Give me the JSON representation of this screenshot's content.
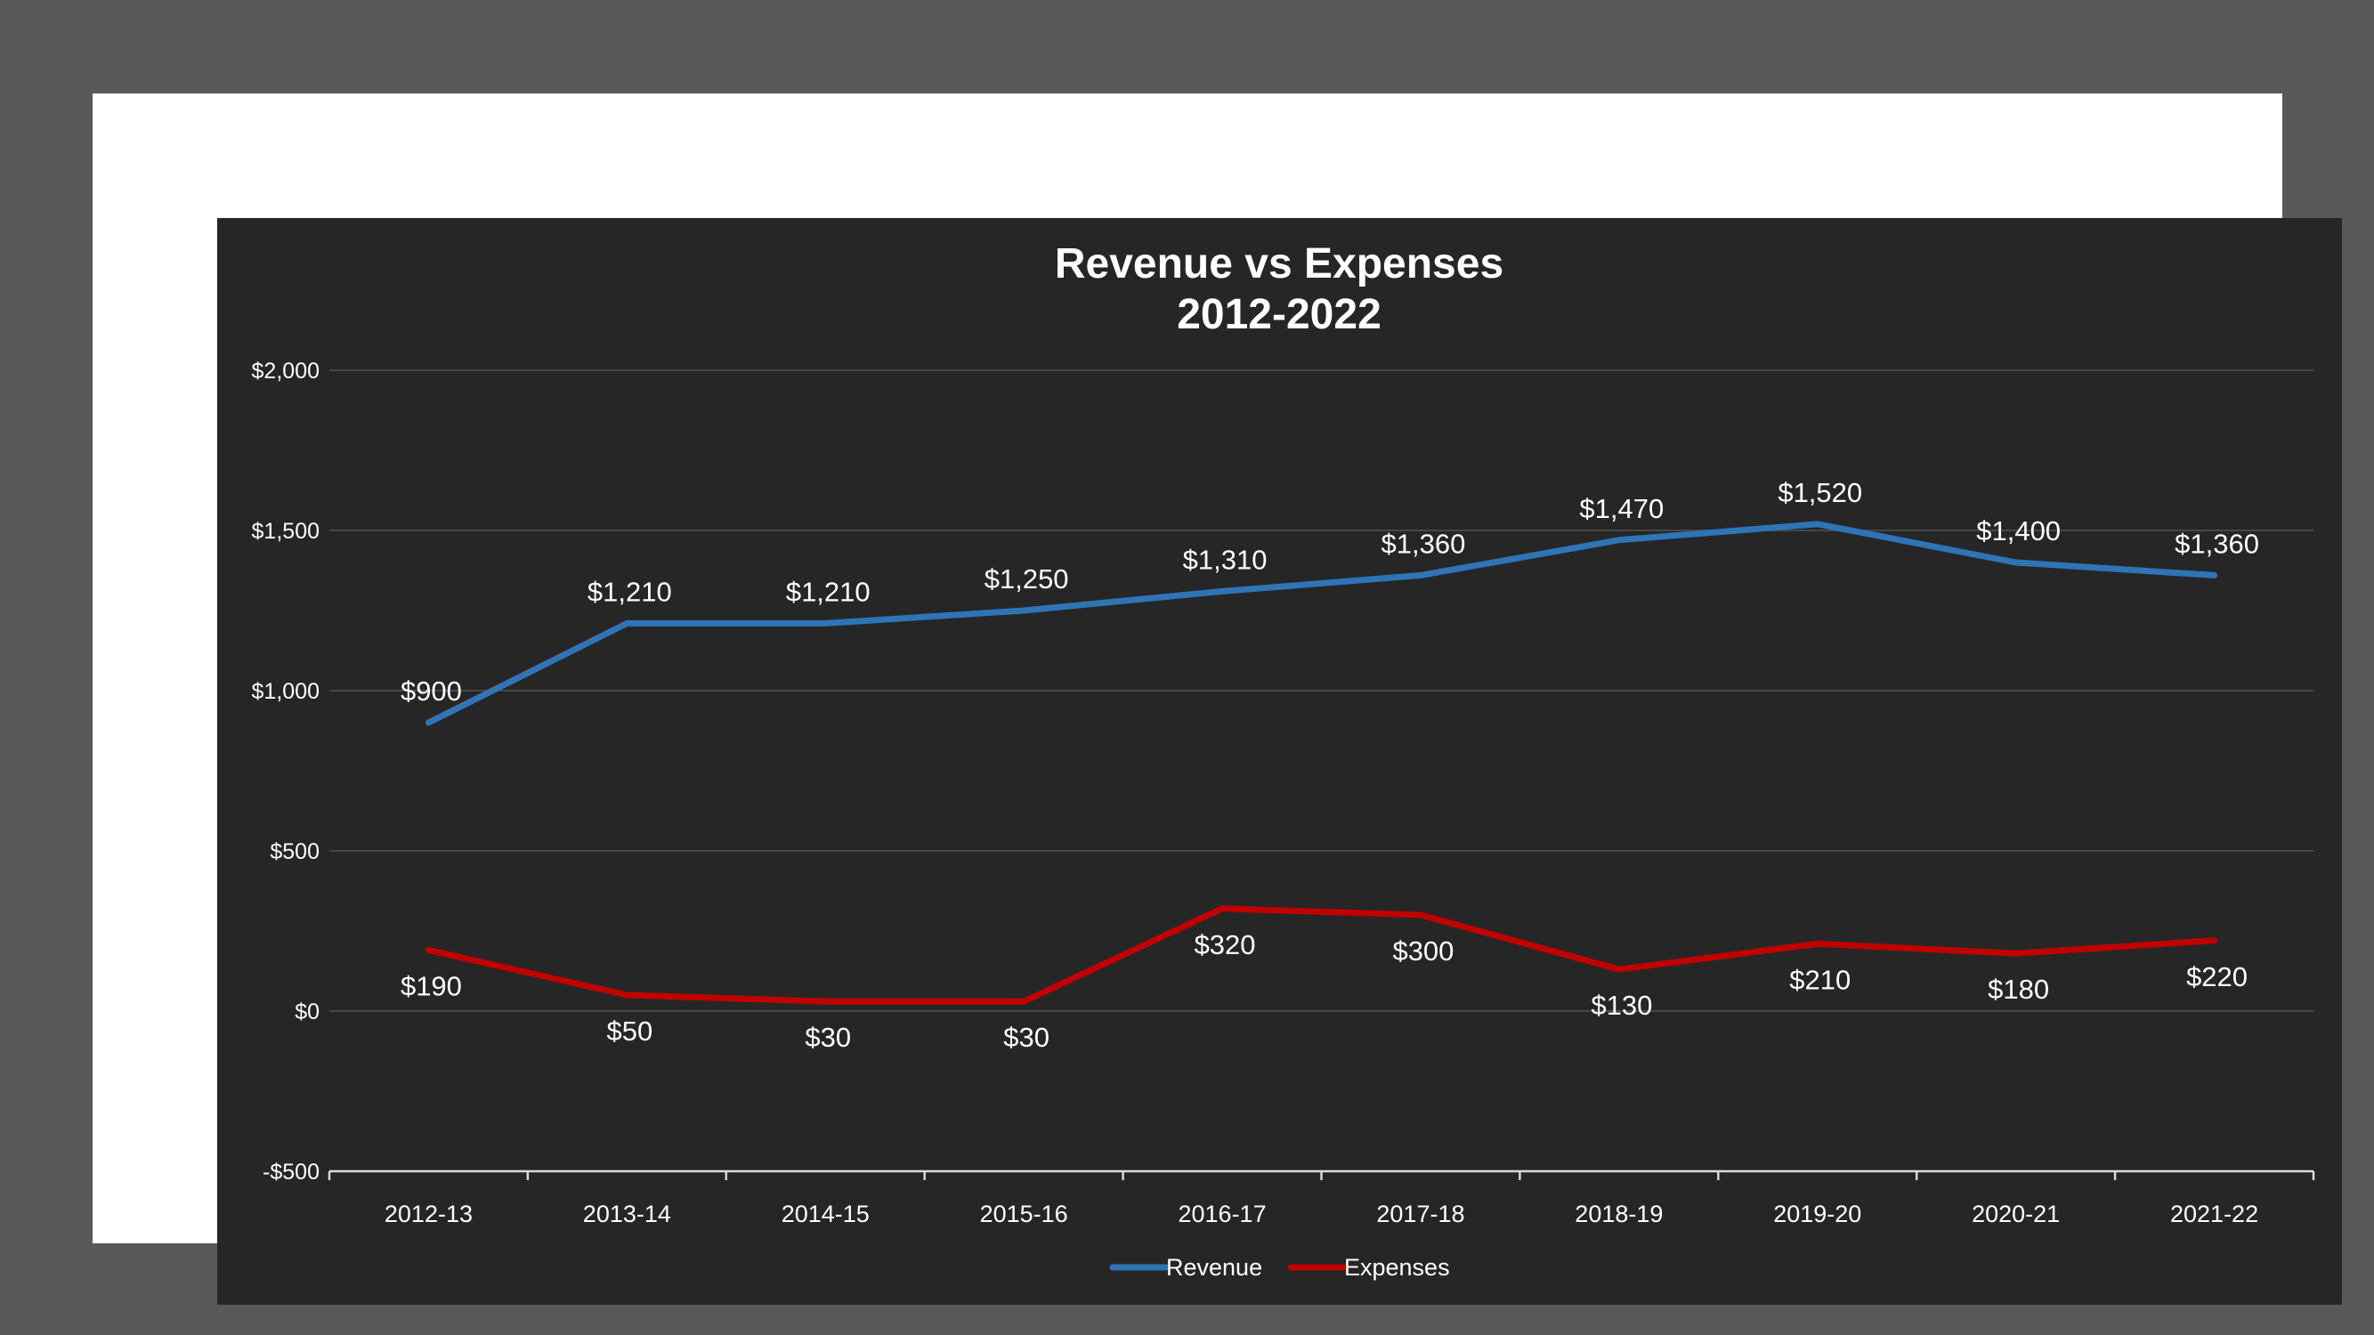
{
  "chart_data": {
    "type": "line",
    "title": "Revenue vs Expenses",
    "subtitle": "2012-2022",
    "categories": [
      "2012-13",
      "2013-14",
      "2014-15",
      "2015-16",
      "2016-17",
      "2017-18",
      "2018-19",
      "2019-20",
      "2020-21",
      "2021-22"
    ],
    "series": [
      {
        "name": "Revenue",
        "color": "#2E75B6",
        "values": [
          900,
          1210,
          1210,
          1250,
          1310,
          1360,
          1470,
          1520,
          1400,
          1360
        ],
        "labels": [
          "$900",
          "$1,210",
          "$1,210",
          "$1,250",
          "$1,310",
          "$1,360",
          "$1,470",
          "$1,520",
          "$1,400",
          "$1,360"
        ],
        "label_position": "above"
      },
      {
        "name": "Expenses",
        "color": "#C00000",
        "values": [
          190,
          50,
          30,
          30,
          320,
          300,
          130,
          210,
          180,
          220
        ],
        "labels": [
          "$190",
          "$50",
          "$30",
          "$30",
          "$320",
          "$300",
          "$130",
          "$210",
          "$180",
          "$220"
        ],
        "label_position": "below"
      }
    ],
    "ylim": [
      -500,
      2000
    ],
    "yticks": [
      {
        "value": 2000,
        "label": "$2,000"
      },
      {
        "value": 1500,
        "label": "$1,500"
      },
      {
        "value": 1000,
        "label": "$1,000"
      },
      {
        "value": 500,
        "label": "$500"
      },
      {
        "value": 0,
        "label": "$0"
      },
      {
        "value": -500,
        "label": "-$500"
      }
    ],
    "grid": true,
    "legend": "bottom",
    "xlabel": "",
    "ylabel": ""
  }
}
